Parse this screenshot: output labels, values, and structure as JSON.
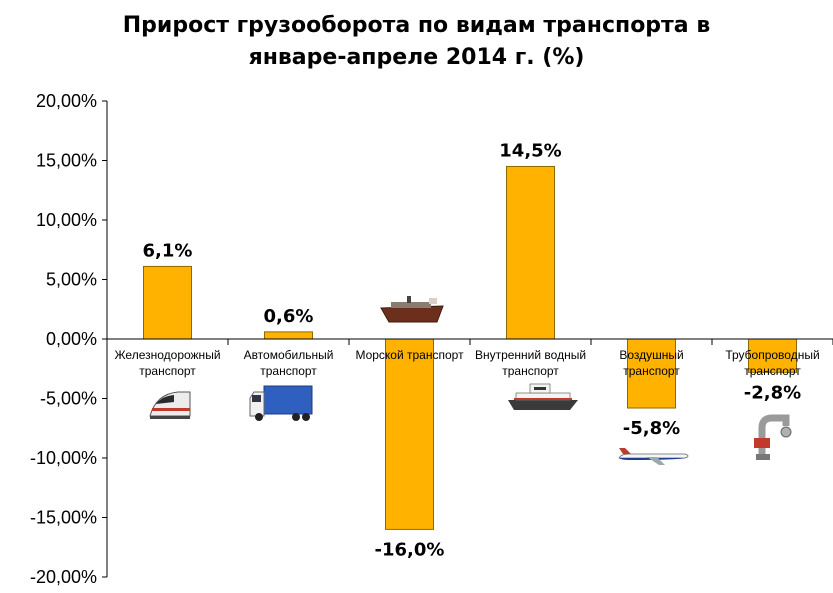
{
  "chart_data": {
    "type": "bar",
    "title_lines": [
      "Прирост грузооборота по видам транспорта в",
      "январе-апреле 2014 г. (%)"
    ],
    "xlabel": "",
    "ylabel": "",
    "ylim": [
      -20,
      20
    ],
    "yticks": [
      20,
      15,
      10,
      5,
      0,
      -5,
      -10,
      -15,
      -20
    ],
    "ytick_labels": [
      "20,00%",
      "15,00%",
      "10,00%",
      "5,00%",
      "0,00%",
      "-5,00%",
      "-10,00%",
      "-15,00%",
      "-20,00%"
    ],
    "grid": false,
    "legend": "none",
    "bar_color": "#FFB300",
    "bar_edge_color": "#8C6A00",
    "categories": [
      [
        "Железнодорожный",
        "транспорт"
      ],
      [
        "Автомобильный",
        "транспорт"
      ],
      [
        "Морской транспорт"
      ],
      [
        "Внутренний водный",
        "транспорт"
      ],
      [
        "Воздушный",
        "транспорт"
      ],
      [
        "Трубопроводный",
        "транспорт"
      ]
    ],
    "values": [
      6.1,
      0.6,
      -16.0,
      14.5,
      -5.8,
      -2.8
    ],
    "data_labels": [
      "6,1%",
      "0,6%",
      "-16,0%",
      "14,5%",
      "-5,8%",
      "-2,8%"
    ],
    "icons": [
      "train-icon",
      "truck-icon",
      "ship-icon",
      "river-boat-icon",
      "airplane-icon",
      "pipeline-valve-icon"
    ]
  }
}
